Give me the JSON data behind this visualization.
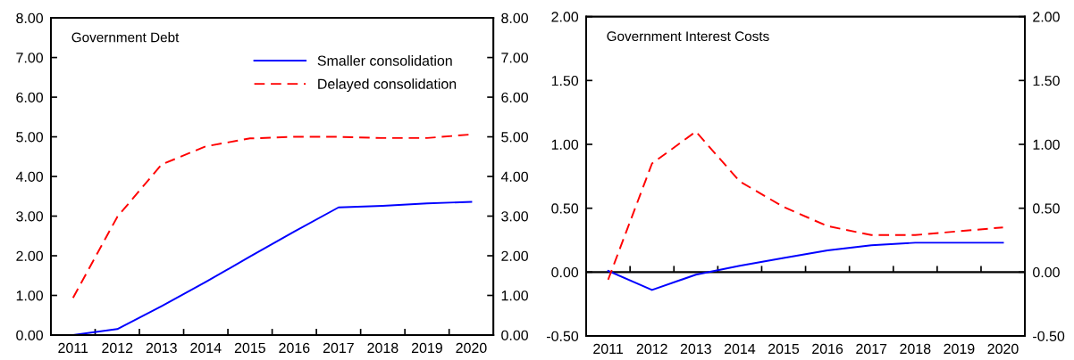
{
  "chart_data": [
    {
      "type": "line",
      "title": "Government Debt",
      "categories": [
        "2011",
        "2012",
        "2013",
        "2014",
        "2015",
        "2016",
        "2017",
        "2018",
        "2019",
        "2020"
      ],
      "series": [
        {
          "name": "Smaller consolidation",
          "color": "#0000ff",
          "line_style": "solid",
          "values": [
            0.0,
            0.15,
            0.73,
            1.34,
            1.98,
            2.61,
            3.22,
            3.26,
            3.32,
            3.36
          ]
        },
        {
          "name": "Delayed consolidation",
          "color": "#ff0000",
          "line_style": "dashed",
          "values": [
            0.94,
            2.98,
            4.3,
            4.76,
            4.96,
            5.0,
            5.0,
            4.97,
            4.97,
            5.06
          ]
        }
      ],
      "ylim": [
        0,
        8
      ],
      "yticks": [
        {
          "value": 0,
          "label": "0.00"
        },
        {
          "value": 1,
          "label": "1.00"
        },
        {
          "value": 2,
          "label": "2.00"
        },
        {
          "value": 3,
          "label": "3.00"
        },
        {
          "value": 4,
          "label": "4.00"
        },
        {
          "value": 5,
          "label": "5.00"
        },
        {
          "value": 6,
          "label": "6.00"
        },
        {
          "value": 7,
          "label": "7.00"
        },
        {
          "value": 8,
          "label": "8.00"
        }
      ],
      "y2lim": [
        0,
        8
      ],
      "y2ticks": [
        {
          "value": 0,
          "label": "0.00"
        },
        {
          "value": 1,
          "label": "1.00"
        },
        {
          "value": 2,
          "label": "2.00"
        },
        {
          "value": 3,
          "label": "3.00"
        },
        {
          "value": 4,
          "label": "4.00"
        },
        {
          "value": 5,
          "label": "5.00"
        },
        {
          "value": 6,
          "label": "6.00"
        },
        {
          "value": 7,
          "label": "7.00"
        },
        {
          "value": 8,
          "label": "8.00"
        }
      ],
      "legend": "top right"
    },
    {
      "type": "line",
      "title": "Government Interest Costs",
      "categories": [
        "2011",
        "2012",
        "2013",
        "2014",
        "2015",
        "2016",
        "2017",
        "2018",
        "2019",
        "2020"
      ],
      "series": [
        {
          "color": "#0000ff",
          "line_style": "solid",
          "values": [
            0.01,
            -0.14,
            -0.02,
            0.05,
            0.11,
            0.17,
            0.21,
            0.23,
            0.23,
            0.23
          ]
        },
        {
          "color": "#ff0000",
          "line_style": "dashed",
          "values": [
            -0.06,
            0.85,
            1.1,
            0.71,
            0.51,
            0.36,
            0.29,
            0.29,
            0.32,
            0.35
          ]
        }
      ],
      "ylim": [
        -0.5,
        2
      ],
      "yticks": [
        {
          "value": -0.5,
          "label": "-0.50"
        },
        {
          "value": 0,
          "label": "0.00"
        },
        {
          "value": 0.5,
          "label": "0.50"
        },
        {
          "value": 1,
          "label": "1.00"
        },
        {
          "value": 1.5,
          "label": "1.50"
        },
        {
          "value": 2,
          "label": "2.00"
        }
      ],
      "y2lim": [
        -0.5,
        2
      ],
      "y2ticks": [
        {
          "value": -0.5,
          "label": "-0.50"
        },
        {
          "value": 0,
          "label": "0.00"
        },
        {
          "value": 0.5,
          "label": "0.50"
        },
        {
          "value": 1,
          "label": "1.00"
        },
        {
          "value": 1.5,
          "label": "1.50"
        },
        {
          "value": 2,
          "label": "2.00"
        }
      ],
      "ref_lines": [
        {
          "axis": "y",
          "value": 0,
          "color": "#000000",
          "line_style": "solid"
        }
      ]
    }
  ]
}
